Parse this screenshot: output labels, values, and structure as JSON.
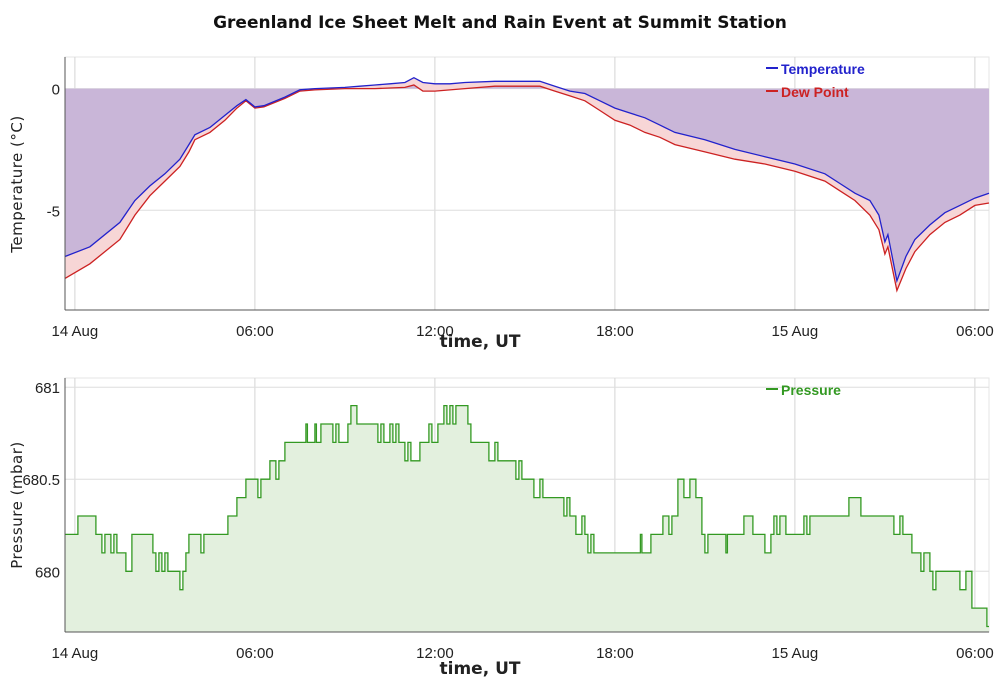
{
  "chart_data": [
    {
      "type": "area",
      "title": "Greenland Ice Sheet Melt and Rain Event at Summit Station",
      "xlabel": "time, UT",
      "ylabel": "Temperature (°C)",
      "x_unit": "hours since 14 Aug 00:00 UT",
      "xlim": [
        -0.33,
        30.47
      ],
      "ylim": [
        -9.1,
        1.3
      ],
      "x_ticks": [
        {
          "t": 0,
          "label": "14 Aug"
        },
        {
          "t": 6,
          "label": "06:00"
        },
        {
          "t": 12,
          "label": "12:00"
        },
        {
          "t": 18,
          "label": "18:00"
        },
        {
          "t": 24,
          "label": "15 Aug"
        },
        {
          "t": 30,
          "label": "06:00"
        }
      ],
      "y_ticks": [
        {
          "v": 0,
          "label": "0"
        },
        {
          "v": -5,
          "label": "-5"
        }
      ],
      "grid": true,
      "legend": "top-right",
      "series": [
        {
          "name": "Temperature",
          "color": "#2222cc",
          "points": [
            [
              -0.33,
              -6.9
            ],
            [
              0.5,
              -6.5
            ],
            [
              1.5,
              -5.5
            ],
            [
              2,
              -4.6
            ],
            [
              2.5,
              -4.0
            ],
            [
              3,
              -3.5
            ],
            [
              3.5,
              -2.9
            ],
            [
              3.8,
              -2.3
            ],
            [
              4,
              -1.9
            ],
            [
              4.5,
              -1.6
            ],
            [
              5,
              -1.1
            ],
            [
              5.4,
              -0.7
            ],
            [
              5.7,
              -0.45
            ],
            [
              6,
              -0.75
            ],
            [
              6.3,
              -0.7
            ],
            [
              7,
              -0.35
            ],
            [
              7.5,
              -0.05
            ],
            [
              8,
              0.0
            ],
            [
              9,
              0.05
            ],
            [
              9.5,
              0.1
            ],
            [
              10,
              0.15
            ],
            [
              10.5,
              0.2
            ],
            [
              11,
              0.25
            ],
            [
              11.3,
              0.45
            ],
            [
              11.6,
              0.25
            ],
            [
              12,
              0.2
            ],
            [
              12.5,
              0.2
            ],
            [
              13,
              0.25
            ],
            [
              14,
              0.3
            ],
            [
              15,
              0.3
            ],
            [
              15.5,
              0.3
            ],
            [
              16,
              0.1
            ],
            [
              16.5,
              -0.1
            ],
            [
              17,
              -0.2
            ],
            [
              17.5,
              -0.5
            ],
            [
              18,
              -0.8
            ],
            [
              18.5,
              -1.0
            ],
            [
              19,
              -1.2
            ],
            [
              19.5,
              -1.5
            ],
            [
              20,
              -1.8
            ],
            [
              21,
              -2.1
            ],
            [
              22,
              -2.5
            ],
            [
              23,
              -2.8
            ],
            [
              24,
              -3.1
            ],
            [
              25,
              -3.5
            ],
            [
              25.5,
              -3.9
            ],
            [
              26,
              -4.3
            ],
            [
              26.5,
              -4.6
            ],
            [
              26.8,
              -5.2
            ],
            [
              27,
              -6.3
            ],
            [
              27.1,
              -6.0
            ],
            [
              27.4,
              -7.9
            ],
            [
              27.7,
              -6.9
            ],
            [
              28,
              -6.2
            ],
            [
              28.5,
              -5.6
            ],
            [
              29,
              -5.1
            ],
            [
              29.5,
              -4.8
            ],
            [
              30,
              -4.5
            ],
            [
              30.47,
              -4.3
            ]
          ]
        },
        {
          "name": "Dew Point",
          "color": "#cc2222",
          "points": [
            [
              -0.33,
              -7.8
            ],
            [
              0.5,
              -7.2
            ],
            [
              1.5,
              -6.2
            ],
            [
              2,
              -5.2
            ],
            [
              2.5,
              -4.4
            ],
            [
              3,
              -3.8
            ],
            [
              3.5,
              -3.2
            ],
            [
              3.8,
              -2.6
            ],
            [
              4,
              -2.1
            ],
            [
              4.5,
              -1.8
            ],
            [
              5,
              -1.3
            ],
            [
              5.4,
              -0.8
            ],
            [
              5.7,
              -0.5
            ],
            [
              6,
              -0.8
            ],
            [
              6.3,
              -0.75
            ],
            [
              7,
              -0.4
            ],
            [
              7.5,
              -0.1
            ],
            [
              8,
              -0.05
            ],
            [
              9,
              0.0
            ],
            [
              10,
              0.0
            ],
            [
              11,
              0.05
            ],
            [
              11.3,
              0.15
            ],
            [
              11.6,
              -0.1
            ],
            [
              12,
              -0.1
            ],
            [
              13,
              0.0
            ],
            [
              14,
              0.1
            ],
            [
              15,
              0.1
            ],
            [
              15.5,
              0.1
            ],
            [
              16,
              -0.1
            ],
            [
              16.5,
              -0.3
            ],
            [
              17,
              -0.5
            ],
            [
              17.5,
              -0.9
            ],
            [
              18,
              -1.3
            ],
            [
              18.5,
              -1.5
            ],
            [
              19,
              -1.8
            ],
            [
              19.5,
              -2.0
            ],
            [
              20,
              -2.3
            ],
            [
              21,
              -2.6
            ],
            [
              22,
              -2.9
            ],
            [
              23,
              -3.1
            ],
            [
              24,
              -3.4
            ],
            [
              25,
              -3.8
            ],
            [
              25.5,
              -4.2
            ],
            [
              26,
              -4.6
            ],
            [
              26.5,
              -5.2
            ],
            [
              26.8,
              -5.8
            ],
            [
              27,
              -6.8
            ],
            [
              27.1,
              -6.5
            ],
            [
              27.4,
              -8.3
            ],
            [
              27.7,
              -7.4
            ],
            [
              28,
              -6.7
            ],
            [
              28.5,
              -6.0
            ],
            [
              29,
              -5.5
            ],
            [
              29.5,
              -5.2
            ],
            [
              30,
              -4.8
            ],
            [
              30.47,
              -4.7
            ]
          ]
        }
      ]
    },
    {
      "type": "area",
      "title": "",
      "xlabel": "time, UT",
      "ylabel": "Pressure (mbar)",
      "x_unit": "hours since 14 Aug 00:00 UT",
      "xlim": [
        -0.33,
        30.47
      ],
      "ylim": [
        679.67,
        681.05
      ],
      "x_ticks": [
        {
          "t": 0,
          "label": "14 Aug"
        },
        {
          "t": 6,
          "label": "06:00"
        },
        {
          "t": 12,
          "label": "12:00"
        },
        {
          "t": 18,
          "label": "18:00"
        },
        {
          "t": 24,
          "label": "15 Aug"
        },
        {
          "t": 30,
          "label": "06:00"
        }
      ],
      "y_ticks": [
        {
          "v": 681,
          "label": "681"
        },
        {
          "v": 680.5,
          "label": "680.5"
        },
        {
          "v": 680,
          "label": "680"
        }
      ],
      "grid": true,
      "legend": "top-right",
      "series": [
        {
          "name": "Pressure",
          "color": "#339922",
          "step": true,
          "points": [
            [
              -0.33,
              680.2
            ],
            [
              0.1,
              680.3
            ],
            [
              0.7,
              680.2
            ],
            [
              0.9,
              680.1
            ],
            [
              1.0,
              680.2
            ],
            [
              1.2,
              680.1
            ],
            [
              1.3,
              680.2
            ],
            [
              1.4,
              680.1
            ],
            [
              1.7,
              680.0
            ],
            [
              1.9,
              680.2
            ],
            [
              2.6,
              680.1
            ],
            [
              2.7,
              680.0
            ],
            [
              2.8,
              680.1
            ],
            [
              2.9,
              680.0
            ],
            [
              3.0,
              680.1
            ],
            [
              3.1,
              680.0
            ],
            [
              3.3,
              680.0
            ],
            [
              3.5,
              679.9
            ],
            [
              3.6,
              680.0
            ],
            [
              3.7,
              680.1
            ],
            [
              3.8,
              680.2
            ],
            [
              4.2,
              680.1
            ],
            [
              4.3,
              680.2
            ],
            [
              5.1,
              680.3
            ],
            [
              5.4,
              680.4
            ],
            [
              5.7,
              680.5
            ],
            [
              6.1,
              680.4
            ],
            [
              6.2,
              680.5
            ],
            [
              6.5,
              680.6
            ],
            [
              6.7,
              680.5
            ],
            [
              6.8,
              680.6
            ],
            [
              7.0,
              680.7
            ],
            [
              7.7,
              680.8
            ],
            [
              7.75,
              680.7
            ],
            [
              8.0,
              680.8
            ],
            [
              8.05,
              680.7
            ],
            [
              8.2,
              680.8
            ],
            [
              8.6,
              680.7
            ],
            [
              8.7,
              680.8
            ],
            [
              8.8,
              680.7
            ],
            [
              9.1,
              680.8
            ],
            [
              9.2,
              680.9
            ],
            [
              9.4,
              680.8
            ],
            [
              10.1,
              680.7
            ],
            [
              10.2,
              680.8
            ],
            [
              10.3,
              680.7
            ],
            [
              10.5,
              680.8
            ],
            [
              10.6,
              680.7
            ],
            [
              10.7,
              680.8
            ],
            [
              10.8,
              680.7
            ],
            [
              11.0,
              680.6
            ],
            [
              11.1,
              680.7
            ],
            [
              11.2,
              680.6
            ],
            [
              11.5,
              680.7
            ],
            [
              11.8,
              680.8
            ],
            [
              11.9,
              680.7
            ],
            [
              12.1,
              680.8
            ],
            [
              12.3,
              680.9
            ],
            [
              12.4,
              680.8
            ],
            [
              12.5,
              680.9
            ],
            [
              12.6,
              680.8
            ],
            [
              12.7,
              680.9
            ],
            [
              13.1,
              680.8
            ],
            [
              13.2,
              680.7
            ],
            [
              13.8,
              680.6
            ],
            [
              14.0,
              680.7
            ],
            [
              14.1,
              680.6
            ],
            [
              14.7,
              680.5
            ],
            [
              14.8,
              680.6
            ],
            [
              14.9,
              680.5
            ],
            [
              15.3,
              680.4
            ],
            [
              15.5,
              680.5
            ],
            [
              15.6,
              680.4
            ],
            [
              16.3,
              680.3
            ],
            [
              16.4,
              680.4
            ],
            [
              16.5,
              680.3
            ],
            [
              16.7,
              680.2
            ],
            [
              16.9,
              680.3
            ],
            [
              17.0,
              680.2
            ],
            [
              17.1,
              680.1
            ],
            [
              17.2,
              680.2
            ],
            [
              17.3,
              680.1
            ],
            [
              17.6,
              680.1
            ],
            [
              18.8,
              680.1
            ],
            [
              18.85,
              680.2
            ],
            [
              18.9,
              680.1
            ],
            [
              19.2,
              680.2
            ],
            [
              19.6,
              680.3
            ],
            [
              19.8,
              680.2
            ],
            [
              19.9,
              680.3
            ],
            [
              20.1,
              680.5
            ],
            [
              20.3,
              680.4
            ],
            [
              20.5,
              680.5
            ],
            [
              20.7,
              680.4
            ],
            [
              20.9,
              680.2
            ],
            [
              21.0,
              680.1
            ],
            [
              21.1,
              680.2
            ],
            [
              21.7,
              680.1
            ],
            [
              21.75,
              680.2
            ],
            [
              22.3,
              680.3
            ],
            [
              22.6,
              680.2
            ],
            [
              23.0,
              680.1
            ],
            [
              23.2,
              680.2
            ],
            [
              23.3,
              680.3
            ],
            [
              23.4,
              680.2
            ],
            [
              23.5,
              680.3
            ],
            [
              23.7,
              680.2
            ],
            [
              24.3,
              680.3
            ],
            [
              24.4,
              680.2
            ],
            [
              24.5,
              680.3
            ],
            [
              24.6,
              680.3
            ],
            [
              25.8,
              680.4
            ],
            [
              26.2,
              680.3
            ],
            [
              27.3,
              680.2
            ],
            [
              27.5,
              680.3
            ],
            [
              27.6,
              680.2
            ],
            [
              27.9,
              680.1
            ],
            [
              28.2,
              680.0
            ],
            [
              28.3,
              680.1
            ],
            [
              28.5,
              680.0
            ],
            [
              28.6,
              679.9
            ],
            [
              28.7,
              680.0
            ],
            [
              29.1,
              680.0
            ],
            [
              29.5,
              679.9
            ],
            [
              29.7,
              680.0
            ],
            [
              29.9,
              679.8
            ],
            [
              30.4,
              679.7
            ],
            [
              30.47,
              679.7
            ]
          ]
        }
      ]
    }
  ]
}
